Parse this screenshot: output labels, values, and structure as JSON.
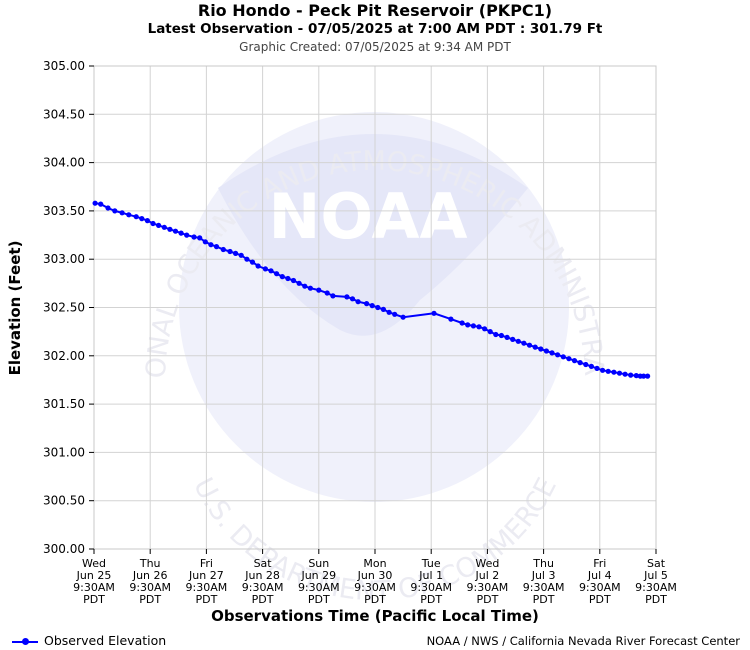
{
  "header": {
    "title": "Rio Hondo - Peck Pit Reservoir (PKPC1)",
    "subtitle": "Latest Observation - 07/05/2025 at 7:00 AM PDT : 301.79 Ft",
    "created": "Graphic Created: 07/05/2025 at 9:34 AM PDT"
  },
  "watermark": {
    "logo_text": "NOAA",
    "arc_top": "NATIONAL OCEANIC AND ATMOSPHERIC ADMINISTRATION",
    "arc_bottom": "U.S. DEPARTMENT OF COMMERCE"
  },
  "legend": {
    "series_label": "Observed Elevation"
  },
  "footer": {
    "credit": "NOAA / NWS / California Nevada River Forecast Center"
  },
  "colors": {
    "series": "#0000ff",
    "grid": "#d3d3d3",
    "watermark": "#e9ebfa"
  },
  "chart_data": {
    "type": "line",
    "title": "Rio Hondo - Peck Pit Reservoir (PKPC1)",
    "xlabel": "Observations Time (Pacific Local Time)",
    "ylabel": "Elevation (Feet)",
    "ylim": [
      300.0,
      305.0
    ],
    "yticks": [
      "300.00",
      "300.50",
      "301.00",
      "301.50",
      "302.00",
      "302.50",
      "303.00",
      "303.50",
      "304.00",
      "304.50",
      "305.00"
    ],
    "xlim_days": [
      0,
      10
    ],
    "xticks": [
      {
        "day": "Wed",
        "date": "Jun 25",
        "time": "9:30AM",
        "tz": "PDT"
      },
      {
        "day": "Thu",
        "date": "Jun 26",
        "time": "9:30AM",
        "tz": "PDT"
      },
      {
        "day": "Fri",
        "date": "Jun 27",
        "time": "9:30AM",
        "tz": "PDT"
      },
      {
        "day": "Sat",
        "date": "Jun 28",
        "time": "9:30AM",
        "tz": "PDT"
      },
      {
        "day": "Sun",
        "date": "Jun 29",
        "time": "9:30AM",
        "tz": "PDT"
      },
      {
        "day": "Mon",
        "date": "Jun 30",
        "time": "9:30AM",
        "tz": "PDT"
      },
      {
        "day": "Tue",
        "date": "Jul 1",
        "time": "9:30AM",
        "tz": "PDT"
      },
      {
        "day": "Wed",
        "date": "Jul 2",
        "time": "9:30AM",
        "tz": "PDT"
      },
      {
        "day": "Thu",
        "date": "Jul 3",
        "time": "9:30AM",
        "tz": "PDT"
      },
      {
        "day": "Fri",
        "date": "Jul 4",
        "time": "9:30AM",
        "tz": "PDT"
      },
      {
        "day": "Sat",
        "date": "Jul 5",
        "time": "9:30AM",
        "tz": "PDT"
      }
    ],
    "series": [
      {
        "name": "Observed Elevation",
        "x_days": [
          0.02,
          0.12,
          0.25,
          0.37,
          0.5,
          0.62,
          0.75,
          0.85,
          0.95,
          1.05,
          1.15,
          1.25,
          1.35,
          1.45,
          1.55,
          1.65,
          1.78,
          1.88,
          1.98,
          2.08,
          2.18,
          2.3,
          2.42,
          2.52,
          2.62,
          2.72,
          2.82,
          2.92,
          3.05,
          3.15,
          3.25,
          3.35,
          3.45,
          3.55,
          3.65,
          3.75,
          3.85,
          4.0,
          4.15,
          4.25,
          4.5,
          4.6,
          4.7,
          4.85,
          4.95,
          5.05,
          5.15,
          5.25,
          5.35,
          5.5,
          6.05,
          6.35,
          6.55,
          6.65,
          6.75,
          6.85,
          6.95,
          7.05,
          7.15,
          7.25,
          7.35,
          7.45,
          7.55,
          7.65,
          7.75,
          7.85,
          7.95,
          8.05,
          8.15,
          8.25,
          8.35,
          8.45,
          8.55,
          8.65,
          8.75,
          8.85,
          8.95,
          9.05,
          9.15,
          9.25,
          9.35,
          9.45,
          9.55,
          9.65,
          9.72,
          9.78,
          9.85
        ],
        "values": [
          303.58,
          303.57,
          303.53,
          303.5,
          303.48,
          303.46,
          303.44,
          303.42,
          303.4,
          303.37,
          303.35,
          303.33,
          303.31,
          303.29,
          303.27,
          303.25,
          303.23,
          303.22,
          303.18,
          303.15,
          303.13,
          303.1,
          303.08,
          303.06,
          303.04,
          303.0,
          302.97,
          302.93,
          302.9,
          302.88,
          302.85,
          302.82,
          302.8,
          302.78,
          302.75,
          302.72,
          302.7,
          302.68,
          302.65,
          302.62,
          302.61,
          302.59,
          302.56,
          302.54,
          302.52,
          302.5,
          302.48,
          302.45,
          302.43,
          302.4,
          302.44,
          302.38,
          302.34,
          302.32,
          302.31,
          302.3,
          302.28,
          302.25,
          302.22,
          302.21,
          302.19,
          302.17,
          302.15,
          302.13,
          302.11,
          302.09,
          302.07,
          302.05,
          302.03,
          302.01,
          301.99,
          301.97,
          301.95,
          301.93,
          301.91,
          301.89,
          301.87,
          301.85,
          301.84,
          301.83,
          301.82,
          301.81,
          301.8,
          301.795,
          301.79,
          301.79,
          301.79
        ]
      }
    ]
  }
}
